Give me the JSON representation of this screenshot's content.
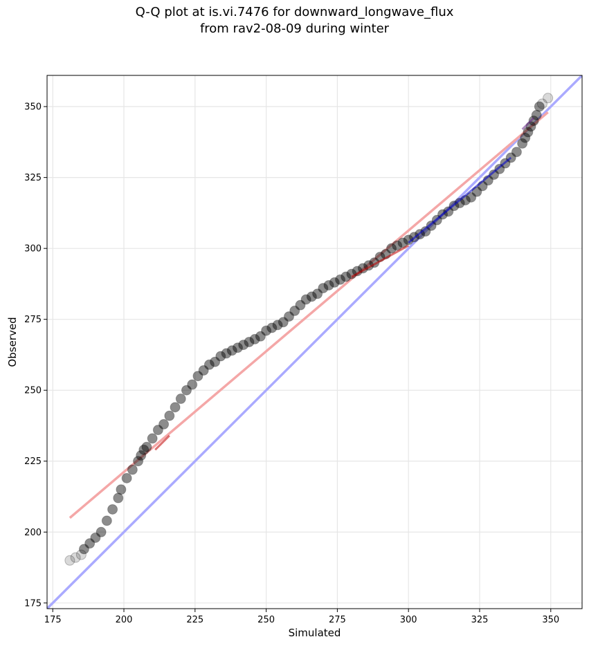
{
  "title": {
    "line1": "Q-Q plot at is.vi.7476 for downward_longwave_flux",
    "line2": "from rav2-08-09 during winter"
  },
  "chart_data": {
    "type": "scatter",
    "title": "Q-Q plot at is.vi.7476 for downward_longwave_flux\nfrom rav2-08-09 during winter",
    "xlabel": "Simulated",
    "ylabel": "Observed",
    "xlim": [
      173,
      361
    ],
    "ylim": [
      173,
      361
    ],
    "xticks": [
      175,
      200,
      225,
      250,
      275,
      300,
      325,
      350
    ],
    "yticks": [
      175,
      200,
      225,
      250,
      275,
      300,
      325,
      350
    ],
    "grid": true,
    "colors": {
      "points": "#000000",
      "identity_line": "#aaaaff",
      "fit_line": "#f4a7a7",
      "iqr_highlight": "#c00000",
      "upper_highlight": "#0000cc"
    },
    "series": [
      {
        "type": "scatter",
        "x": [
          181,
          183,
          185,
          186,
          188,
          190,
          192,
          194,
          196,
          198,
          199,
          201,
          203,
          205,
          206,
          207,
          208,
          210,
          212,
          214,
          216,
          218,
          220,
          222,
          224,
          226,
          228,
          230,
          232,
          234,
          236,
          238,
          240,
          242,
          244,
          246,
          248,
          250,
          252,
          254,
          256,
          258,
          260,
          262,
          264,
          266,
          268,
          270,
          272,
          274,
          276,
          278,
          280,
          282,
          284,
          286,
          288,
          290,
          292,
          294,
          296,
          298,
          300,
          302,
          304,
          306,
          308,
          310,
          312,
          314,
          316,
          318,
          320,
          322,
          324,
          326,
          328,
          330,
          332,
          334,
          336,
          338,
          340,
          341,
          342,
          343,
          344,
          345,
          346,
          347,
          349
        ],
        "y": [
          190,
          191,
          192,
          194,
          196,
          198,
          200,
          204,
          208,
          212,
          215,
          219,
          222,
          225,
          227,
          229,
          230,
          233,
          236,
          238,
          241,
          244,
          247,
          250,
          252,
          255,
          257,
          259,
          260,
          262,
          263,
          264,
          265,
          266,
          267,
          268,
          269,
          271,
          272,
          273,
          274,
          276,
          278,
          280,
          282,
          283,
          284,
          286,
          287,
          288,
          289,
          290,
          291,
          292,
          293,
          294,
          295,
          297,
          298,
          300,
          301,
          302,
          303,
          304,
          305,
          306,
          308,
          310,
          312,
          313,
          315,
          316,
          317,
          318,
          320,
          322,
          324,
          326,
          328,
          330,
          332,
          334,
          337,
          339,
          341,
          343,
          345,
          347,
          350,
          351,
          353
        ]
      },
      {
        "type": "line",
        "x": [
          173,
          361
        ],
        "y": [
          173,
          361
        ]
      },
      {
        "type": "line",
        "x": [
          181,
          349
        ],
        "y": [
          205,
          348
        ]
      },
      {
        "type": "line",
        "x": [
          211,
          216
        ],
        "y": [
          229,
          234
        ]
      },
      {
        "type": "line",
        "x": [
          280,
          300
        ],
        "y": [
          290,
          301
        ]
      },
      {
        "type": "line",
        "x": [
          300,
          336
        ],
        "y": [
          302,
          332
        ]
      },
      {
        "type": "line",
        "x": [
          340,
          344
        ],
        "y": [
          342,
          346
        ]
      }
    ]
  }
}
